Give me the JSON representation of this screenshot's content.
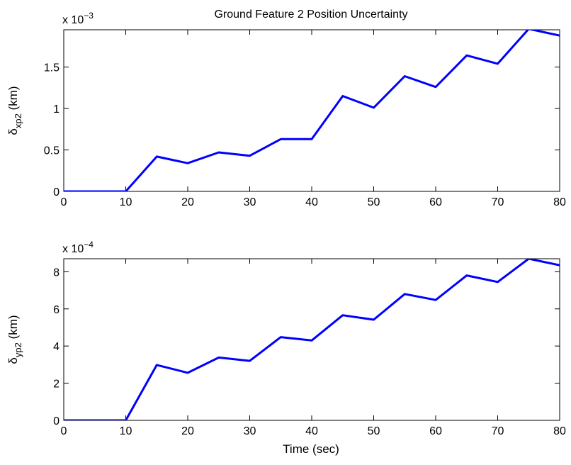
{
  "title": "Ground Feature 2 Position Uncertainty",
  "xlabel": "Time (sec)",
  "series_color": "#0000ff",
  "chart_data": [
    {
      "type": "line",
      "ylabel": {
        "base": "δ",
        "sub": "xp2",
        "unit": " (km)"
      },
      "scale_label": {
        "base": "x 10",
        "exp": "−3"
      },
      "xlim": [
        0,
        80
      ],
      "ylim": [
        0,
        1.95
      ],
      "xticks": [
        0,
        10,
        20,
        30,
        40,
        50,
        60,
        70,
        80
      ],
      "yticks": [
        0,
        0.5,
        1,
        1.5
      ],
      "ytick_labels": [
        "0",
        "0.5",
        "1",
        "1.5"
      ],
      "x": [
        0,
        10,
        15,
        20,
        25,
        30,
        35,
        40,
        45,
        50,
        55,
        60,
        65,
        70,
        75,
        80
      ],
      "y": [
        0,
        0,
        0.42,
        0.34,
        0.47,
        0.43,
        0.63,
        0.63,
        1.15,
        1.01,
        1.39,
        1.26,
        1.64,
        1.54,
        1.96,
        1.88
      ]
    },
    {
      "type": "line",
      "ylabel": {
        "base": "δ",
        "sub": "yp2",
        "unit": " (km)"
      },
      "scale_label": {
        "base": "x 10",
        "exp": "−4"
      },
      "xlim": [
        0,
        80
      ],
      "ylim": [
        0,
        8.7
      ],
      "xticks": [
        0,
        10,
        20,
        30,
        40,
        50,
        60,
        70,
        80
      ],
      "yticks": [
        0,
        2,
        4,
        6,
        8
      ],
      "ytick_labels": [
        "0",
        "2",
        "4",
        "6",
        "8"
      ],
      "x": [
        0,
        10,
        15,
        20,
        25,
        30,
        35,
        40,
        45,
        50,
        55,
        60,
        65,
        70,
        75,
        80
      ],
      "y": [
        0,
        0,
        2.98,
        2.56,
        3.38,
        3.2,
        4.48,
        4.3,
        5.66,
        5.42,
        6.8,
        6.48,
        7.8,
        7.45,
        8.7,
        8.35
      ]
    }
  ]
}
